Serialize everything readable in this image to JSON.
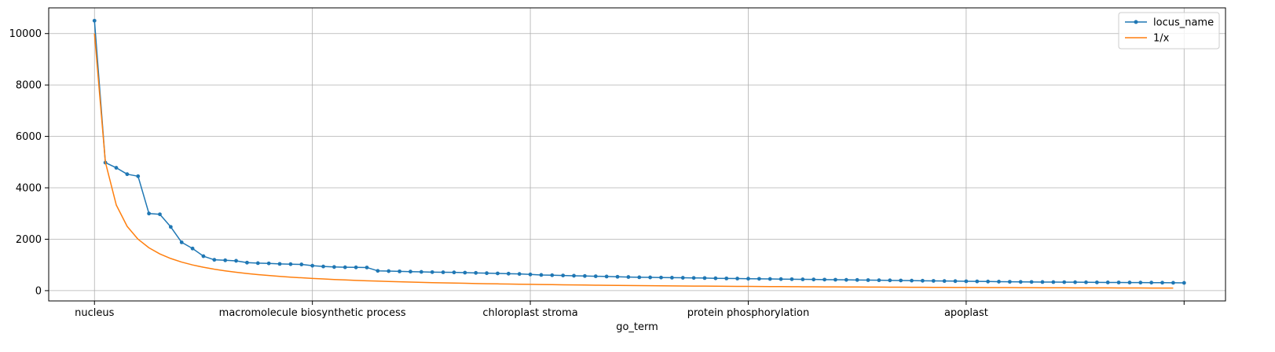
{
  "chart_data": {
    "type": "line",
    "xlabel": "go_term",
    "ylabel": "",
    "x_tick_labels": [
      "nucleus",
      "macromolecule biosynthetic process",
      "chloroplast stroma",
      "protein phosphorylation",
      "apoplast",
      ""
    ],
    "x_tick_positions": [
      0,
      20,
      40,
      60,
      80,
      100
    ],
    "xlim": [
      -4.2,
      103.8
    ],
    "y_ticks": [
      0,
      2000,
      4000,
      6000,
      8000,
      10000
    ],
    "ylim": [
      -400,
      11000
    ],
    "grid": true,
    "legend_position": "top-right",
    "series": [
      {
        "name": "locus_name",
        "color": "#1f77b4",
        "marker": "dot",
        "values": [
          10500,
          4980,
          4780,
          4530,
          4450,
          3000,
          2970,
          2480,
          1880,
          1640,
          1340,
          1200,
          1180,
          1160,
          1090,
          1070,
          1060,
          1040,
          1030,
          1020,
          970,
          940,
          920,
          910,
          905,
          900,
          770,
          760,
          750,
          740,
          730,
          720,
          715,
          710,
          700,
          690,
          680,
          670,
          660,
          650,
          630,
          610,
          600,
          590,
          580,
          570,
          560,
          550,
          540,
          530,
          520,
          515,
          510,
          505,
          500,
          495,
          490,
          480,
          475,
          470,
          465,
          460,
          455,
          450,
          445,
          440,
          435,
          430,
          425,
          420,
          415,
          410,
          405,
          400,
          395,
          390,
          385,
          380,
          375,
          370,
          365,
          360,
          355,
          350,
          345,
          340,
          338,
          335,
          333,
          330,
          328,
          325,
          322,
          320,
          318,
          316,
          314,
          312,
          310,
          306,
          302
        ]
      },
      {
        "name": "1/x",
        "color": "#ff7f0e",
        "marker": "none",
        "formula_numerator": 10000,
        "x_start": 0,
        "x_end": 99
      }
    ]
  }
}
